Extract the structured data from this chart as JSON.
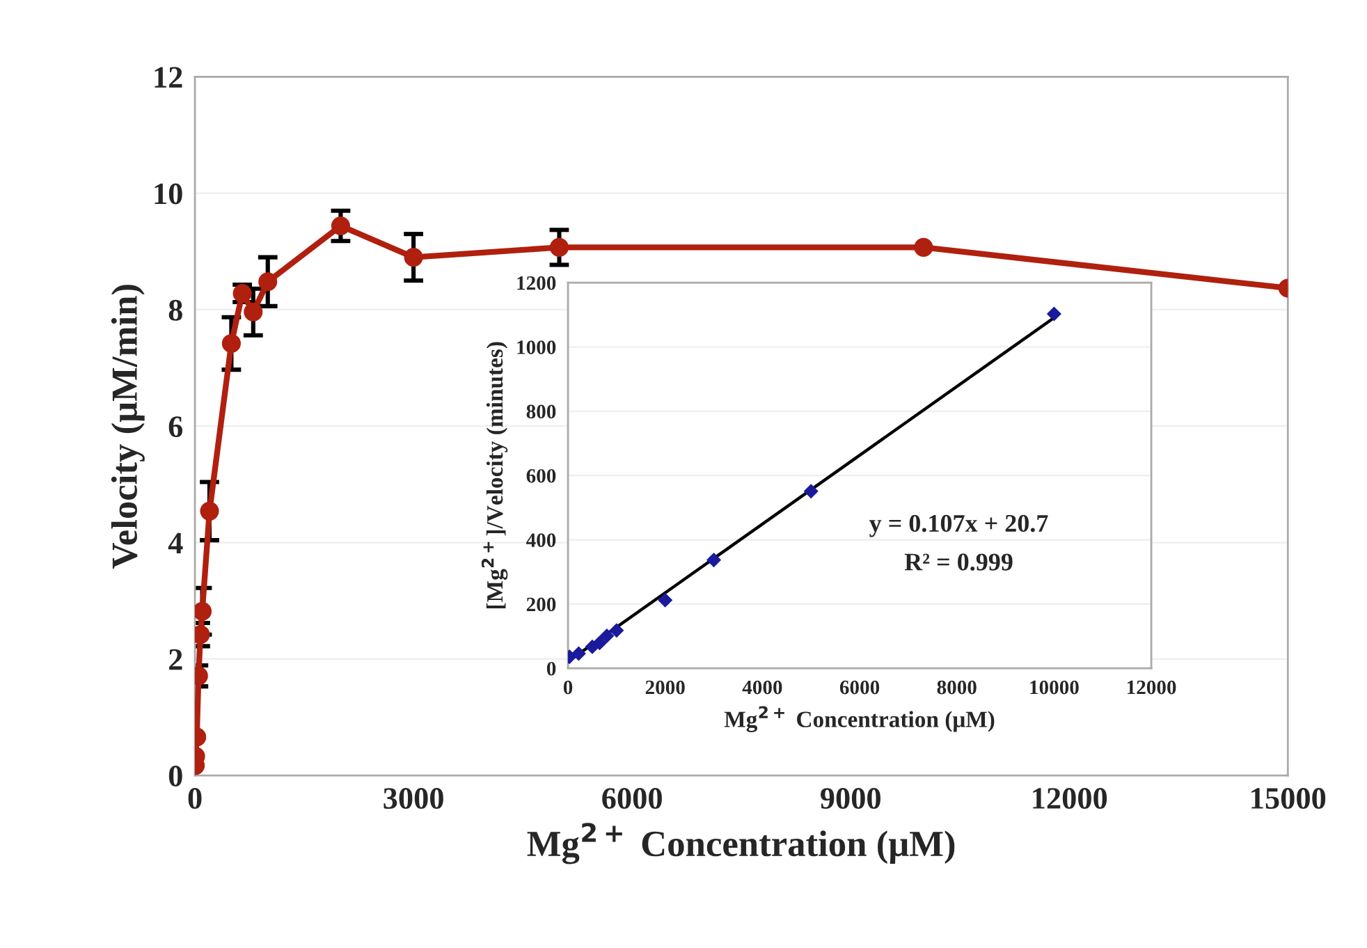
{
  "chart_data": [
    {
      "type": "line",
      "xlabel": "Mg$^{2+}$ Concentration (μM)",
      "ylabel": "Velocity (μM/min)",
      "x": [
        5,
        10,
        25,
        50,
        75,
        100,
        200,
        500,
        650,
        800,
        1000,
        2000,
        3000,
        5000,
        10000,
        15000
      ],
      "series": [
        {
          "color": "#b0200f",
          "values": [
            0.17,
            0.33,
            0.66,
            1.71,
            2.42,
            2.82,
            4.54,
            7.42,
            8.28,
            7.96,
            8.48,
            9.44,
            8.9,
            9.07,
            9.07,
            8.37
          ],
          "errors": [
            null,
            null,
            null,
            0.18,
            0.2,
            0.4,
            0.5,
            0.45,
            0.15,
            0.4,
            0.42,
            0.26,
            0.4,
            0.3,
            null,
            null
          ]
        }
      ],
      "xlim": [
        0,
        15000
      ],
      "xticks": [
        0,
        3000,
        6000,
        9000,
        12000,
        15000
      ],
      "ylim": [
        0,
        12
      ],
      "yticks": [
        0,
        2,
        4,
        6,
        8,
        10,
        12
      ],
      "grid": "y",
      "marker": "circle",
      "line_style": "solid"
    },
    {
      "type": "scatter",
      "xlabel": "Mg$^{2+}$ Concentration (μM)",
      "ylabel": "[Mg$^{2+}$]/Velocity (minutes)",
      "annotations": [
        "y = 0.107x + 20.7",
        "R² = 0.999"
      ],
      "series": [
        {
          "type": "scatter",
          "marker": "diamond",
          "color": "#1a1a9c",
          "x": [
            30,
            220,
            500,
            650,
            800,
            1000,
            2000,
            3000,
            5000,
            10000
          ],
          "values": [
            36,
            46,
            67,
            79,
            101,
            118,
            212,
            337,
            551,
            1103
          ]
        },
        {
          "type": "line",
          "color": "#000000",
          "x": [
            0,
            10000
          ],
          "values": [
            21,
            1091
          ]
        }
      ],
      "xlim": [
        0,
        12000
      ],
      "xticks": [
        0,
        2000,
        4000,
        6000,
        8000,
        10000,
        12000
      ],
      "ylim": [
        0,
        1200
      ],
      "yticks": [
        0,
        200,
        400,
        600,
        800,
        1000,
        1200
      ],
      "grid": "y"
    }
  ]
}
